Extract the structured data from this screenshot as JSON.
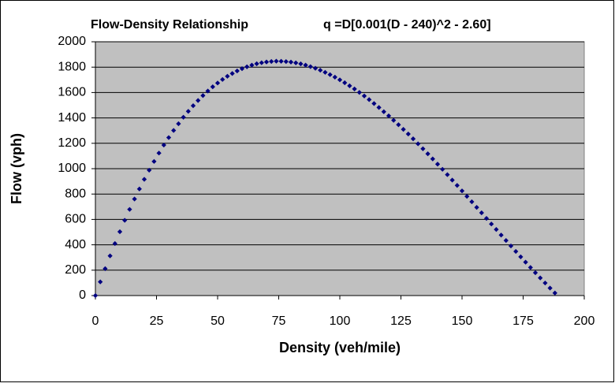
{
  "chart_data": {
    "type": "scatter",
    "title": "Flow-Density Relationship",
    "annotation": "q =D[0.001(D - 240)^2 - 2.60]",
    "x_label": "Density (veh/mile)",
    "y_label": "Flow (vph)",
    "xlim": [
      0,
      200
    ],
    "ylim": [
      0,
      2000
    ],
    "xticks": [
      0,
      25,
      50,
      75,
      100,
      125,
      150,
      175,
      200
    ],
    "yticks": [
      0,
      200,
      400,
      600,
      800,
      1000,
      1200,
      1400,
      1600,
      1800,
      2000
    ],
    "grid": true,
    "series": [
      {
        "color": "#000080",
        "x": [
          0,
          2,
          4,
          6,
          8,
          10,
          12,
          14,
          16,
          18,
          20,
          22,
          24,
          26,
          28,
          30,
          32,
          34,
          36,
          38,
          40,
          42,
          44,
          46,
          48,
          50,
          52,
          54,
          56,
          58,
          60,
          62,
          64,
          66,
          68,
          70,
          72,
          74,
          76,
          78,
          80,
          82,
          84,
          86,
          88,
          90,
          92,
          94,
          96,
          98,
          100,
          102,
          104,
          106,
          108,
          110,
          112,
          114,
          116,
          118,
          120,
          122,
          124,
          126,
          128,
          130,
          132,
          134,
          136,
          138,
          140,
          142,
          144,
          146,
          148,
          150,
          152,
          154,
          156,
          158,
          160,
          162,
          164,
          166,
          168,
          170,
          172,
          174,
          176,
          178,
          180,
          182,
          184,
          186,
          188
        ],
        "values": [
          0,
          108,
          212,
          313,
          410,
          503,
          593,
          679,
          761,
          840,
          916,
          988,
          1057,
          1123,
          1186,
          1245,
          1301,
          1354,
          1405,
          1452,
          1496,
          1537,
          1576,
          1612,
          1645,
          1675,
          1703,
          1728,
          1750,
          1770,
          1788,
          1803,
          1816,
          1827,
          1835,
          1841,
          1845,
          1847,
          1846,
          1844,
          1840,
          1834,
          1826,
          1816,
          1804,
          1791,
          1776,
          1759,
          1741,
          1721,
          1700,
          1677,
          1653,
          1628,
          1601,
          1573,
          1544,
          1513,
          1482,
          1449,
          1416,
          1381,
          1346,
          1310,
          1273,
          1235,
          1196,
          1157,
          1117,
          1077,
          1036,
          995,
          953,
          910,
          868,
          825,
          782,
          739,
          695,
          652,
          608,
          564,
          521,
          477,
          434,
          391,
          348,
          305,
          263,
          221,
          180,
          139,
          99,
          59,
          20
        ]
      }
    ]
  }
}
